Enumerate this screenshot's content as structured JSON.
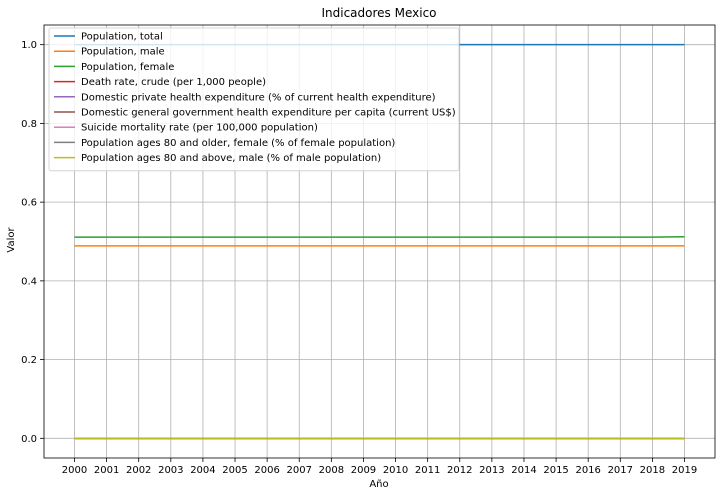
{
  "chart_data": {
    "type": "line",
    "title": "Indicadores Mexico",
    "xlabel": "Año",
    "ylabel": "Valor",
    "x": [
      2000,
      2001,
      2002,
      2003,
      2004,
      2005,
      2006,
      2007,
      2008,
      2009,
      2010,
      2011,
      2012,
      2013,
      2014,
      2015,
      2016,
      2017,
      2018,
      2019
    ],
    "x_ticks": [
      "2000",
      "2001",
      "2002",
      "2003",
      "2004",
      "2005",
      "2006",
      "2007",
      "2008",
      "2009",
      "2010",
      "2011",
      "2012",
      "2013",
      "2014",
      "2015",
      "2016",
      "2017",
      "2018",
      "2019"
    ],
    "y_ticks": [
      "0.0",
      "0.2",
      "0.4",
      "0.6",
      "0.8",
      "1.0"
    ],
    "y_tick_values": [
      0.0,
      0.2,
      0.4,
      0.6,
      0.8,
      1.0
    ],
    "xlim": [
      1999.05,
      2019.95
    ],
    "ylim": [
      -0.05,
      1.05
    ],
    "grid": true,
    "legend_position": "top-left",
    "series": [
      {
        "name": "Population, total",
        "color": "#1f77b4",
        "values": [
          1,
          1,
          1,
          1,
          1,
          1,
          1,
          1,
          1,
          1,
          1,
          1,
          1,
          1,
          1,
          1,
          1,
          1,
          1,
          1
        ]
      },
      {
        "name": "Population, male",
        "color": "#ff7f0e",
        "values": [
          0.489,
          0.489,
          0.489,
          0.489,
          0.489,
          0.489,
          0.489,
          0.489,
          0.489,
          0.489,
          0.489,
          0.489,
          0.489,
          0.489,
          0.489,
          0.489,
          0.489,
          0.489,
          0.489,
          0.489
        ]
      },
      {
        "name": "Population, female",
        "color": "#2ca02c",
        "values": [
          0.511,
          0.511,
          0.511,
          0.511,
          0.511,
          0.511,
          0.511,
          0.511,
          0.511,
          0.511,
          0.511,
          0.511,
          0.511,
          0.511,
          0.511,
          0.511,
          0.511,
          0.511,
          0.511,
          0.512
        ]
      },
      {
        "name": "Death rate, crude (per 1,000 people)",
        "color": "#d62728",
        "values": [
          0,
          0,
          0,
          0,
          0,
          0,
          0,
          0,
          0,
          0,
          0,
          0,
          0,
          0,
          0,
          0,
          0,
          0,
          0,
          0
        ]
      },
      {
        "name": "Domestic private health expenditure (% of current health expenditure)",
        "color": "#9467bd",
        "values": [
          0,
          0,
          0,
          0,
          0,
          0,
          0,
          0,
          0,
          0,
          0,
          0,
          0,
          0,
          0,
          0,
          0,
          0,
          0,
          0
        ]
      },
      {
        "name": "Domestic general government health expenditure per capita (current US$)",
        "color": "#8c564b",
        "values": [
          0,
          0,
          0,
          0,
          0,
          0,
          0,
          0,
          0,
          0,
          0,
          0,
          0,
          0,
          0,
          0,
          0,
          0,
          0,
          0
        ]
      },
      {
        "name": "Suicide mortality rate (per 100,000 population)",
        "color": "#e377c2",
        "values": [
          0,
          0,
          0,
          0,
          0,
          0,
          0,
          0,
          0,
          0,
          0,
          0,
          0,
          0,
          0,
          0,
          0,
          0,
          0,
          0
        ]
      },
      {
        "name": "Population ages 80 and older, female (% of female population)",
        "color": "#7f7f7f",
        "values": [
          0,
          0,
          0,
          0,
          0,
          0,
          0,
          0,
          0,
          0,
          0,
          0,
          0,
          0,
          0,
          0,
          0,
          0,
          0,
          0
        ]
      },
      {
        "name": "Population ages 80 and above, male (% of male population)",
        "color": "#bcbd22",
        "values": [
          0,
          0,
          0,
          0,
          0,
          0,
          0,
          0,
          0,
          0,
          0,
          0,
          0,
          0,
          0,
          0,
          0,
          0,
          0,
          0
        ]
      }
    ]
  }
}
